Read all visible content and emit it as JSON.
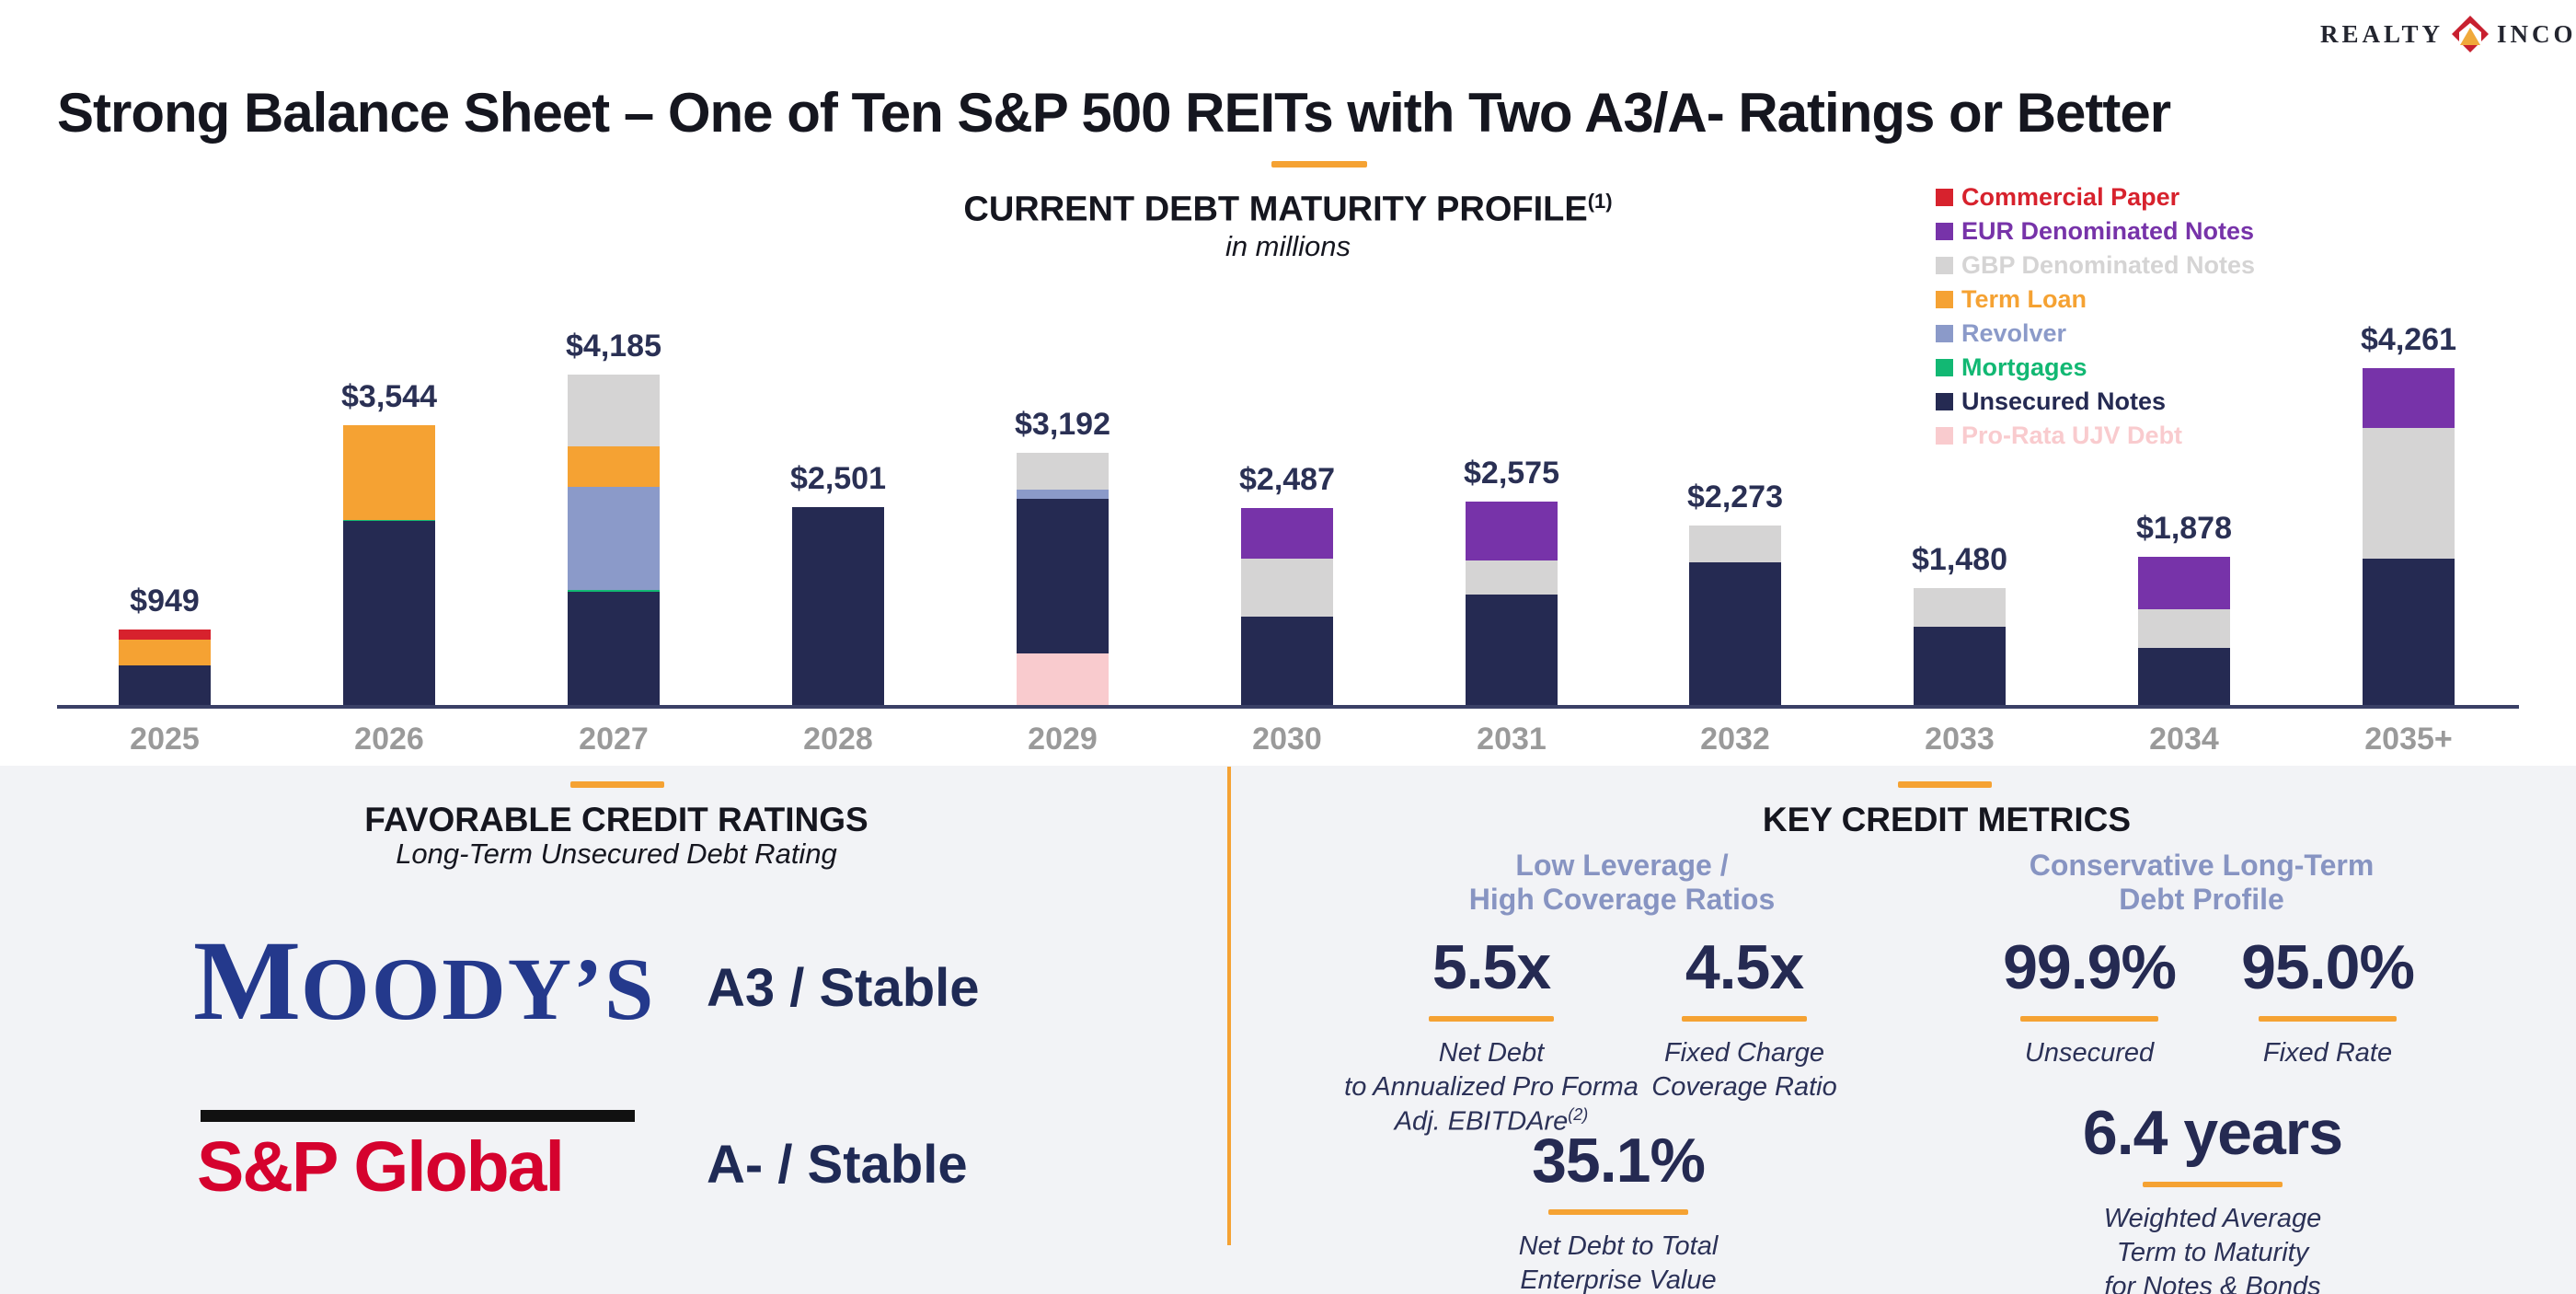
{
  "logo": {
    "realty": "REALTY",
    "income": "INCOME"
  },
  "title": "Strong Balance Sheet – One of Ten S&P 500 REITs with Two A3/A- Ratings or Better",
  "chart": {
    "title": "CURRENT DEBT MATURITY PROFILE",
    "title_note": "(1)",
    "subtitle": "in millions",
    "legend": [
      {
        "label": "Commercial Paper",
        "color": "#D7222D"
      },
      {
        "label": "EUR Denominated Notes",
        "color": "#7733A9"
      },
      {
        "label": "GBP Denominated Notes",
        "color": "#D5D4D4"
      },
      {
        "label": "Term Loan",
        "color": "#F5A233"
      },
      {
        "label": "Revolver",
        "color": "#8B9AC9"
      },
      {
        "label": "Mortgages",
        "color": "#12B873"
      },
      {
        "label": "Unsecured Notes",
        "color": "#252A52"
      },
      {
        "label": "Pro-Rata UJV Debt",
        "color": "#F9CBCE"
      }
    ]
  },
  "chart_data": {
    "type": "bar",
    "stacked": true,
    "title": "CURRENT DEBT MATURITY PROFILE",
    "subtitle": "in millions",
    "units": "USD millions",
    "grid": false,
    "legend_position": "upper right",
    "ylim": [
      0,
      4600
    ],
    "categories": [
      "2025",
      "2026",
      "2027",
      "2028",
      "2029",
      "2030",
      "2031",
      "2032",
      "2033",
      "2034",
      "2035+"
    ],
    "totals": [
      949,
      3544,
      4185,
      2501,
      3192,
      2487,
      2575,
      2273,
      1480,
      1878,
      4261
    ],
    "totals_display": [
      "$949",
      "$3,544",
      "$4,185",
      "$2,501",
      "$3,192",
      "$2,487",
      "$2,575",
      "$2,273",
      "$1,480",
      "$1,878",
      "$4,261"
    ],
    "series": [
      {
        "name": "Pro-Rata UJV Debt",
        "color": "#F9CBCE",
        "values": [
          0,
          0,
          0,
          0,
          657,
          0,
          0,
          0,
          0,
          0,
          0
        ]
      },
      {
        "name": "Unsecured Notes",
        "color": "#252A52",
        "values": [
          500,
          2330,
          1430,
          2501,
          1950,
          1114,
          1400,
          1803,
          990,
          727,
          1854
        ]
      },
      {
        "name": "Mortgages",
        "color": "#12B873",
        "values": [
          0,
          14,
          20,
          0,
          0,
          0,
          0,
          0,
          0,
          0,
          0
        ]
      },
      {
        "name": "Revolver",
        "color": "#8B9AC9",
        "values": [
          0,
          0,
          1310,
          0,
          115,
          0,
          0,
          0,
          0,
          0,
          0
        ]
      },
      {
        "name": "Term Loan",
        "color": "#F5A233",
        "values": [
          330,
          1200,
          510,
          0,
          0,
          0,
          0,
          0,
          0,
          0,
          0
        ]
      },
      {
        "name": "Commercial Paper",
        "color": "#D7222D",
        "values": [
          119,
          0,
          0,
          0,
          0,
          0,
          0,
          0,
          0,
          0,
          0
        ]
      },
      {
        "name": "GBP Denominated Notes",
        "color": "#D5D4D4",
        "values": [
          0,
          0,
          915,
          0,
          470,
          741,
          428,
          470,
          490,
          478,
          1645
        ]
      },
      {
        "name": "EUR Denominated Notes",
        "color": "#7733A9",
        "values": [
          0,
          0,
          0,
          0,
          0,
          632,
          747,
          0,
          0,
          673,
          762
        ]
      }
    ]
  },
  "ratings": {
    "heading": "FAVORABLE CREDIT RATINGS",
    "subheading": "Long-Term Unsecured Debt Rating",
    "moodys": {
      "initial": "M",
      "rest": "OODY’S",
      "rating": "A3 / Stable"
    },
    "sp": {
      "name": "S&P Global",
      "rating": "A- / Stable"
    }
  },
  "metrics": {
    "heading": "KEY CREDIT METRICS",
    "left_group_heading": "Low Leverage /\nHigh Coverage Ratios",
    "right_group_heading": "Conservative Long-Term\nDebt Profile",
    "items": [
      {
        "value": "5.5x",
        "caption": "Net Debt\nto Annualized Pro Forma\nAdj. EBITDAre",
        "caption_note": "(2)"
      },
      {
        "value": "4.5x",
        "caption": "Fixed Charge\nCoverage Ratio"
      },
      {
        "value": "35.1%",
        "caption": "Net Debt to Total\nEnterprise Value"
      },
      {
        "value": "99.9%",
        "caption": "Unsecured"
      },
      {
        "value": "95.0%",
        "caption": "Fixed Rate"
      },
      {
        "value": "6.4 years",
        "caption": "Weighted Average\nTerm to Maturity\nfor Notes & Bonds"
      }
    ]
  }
}
